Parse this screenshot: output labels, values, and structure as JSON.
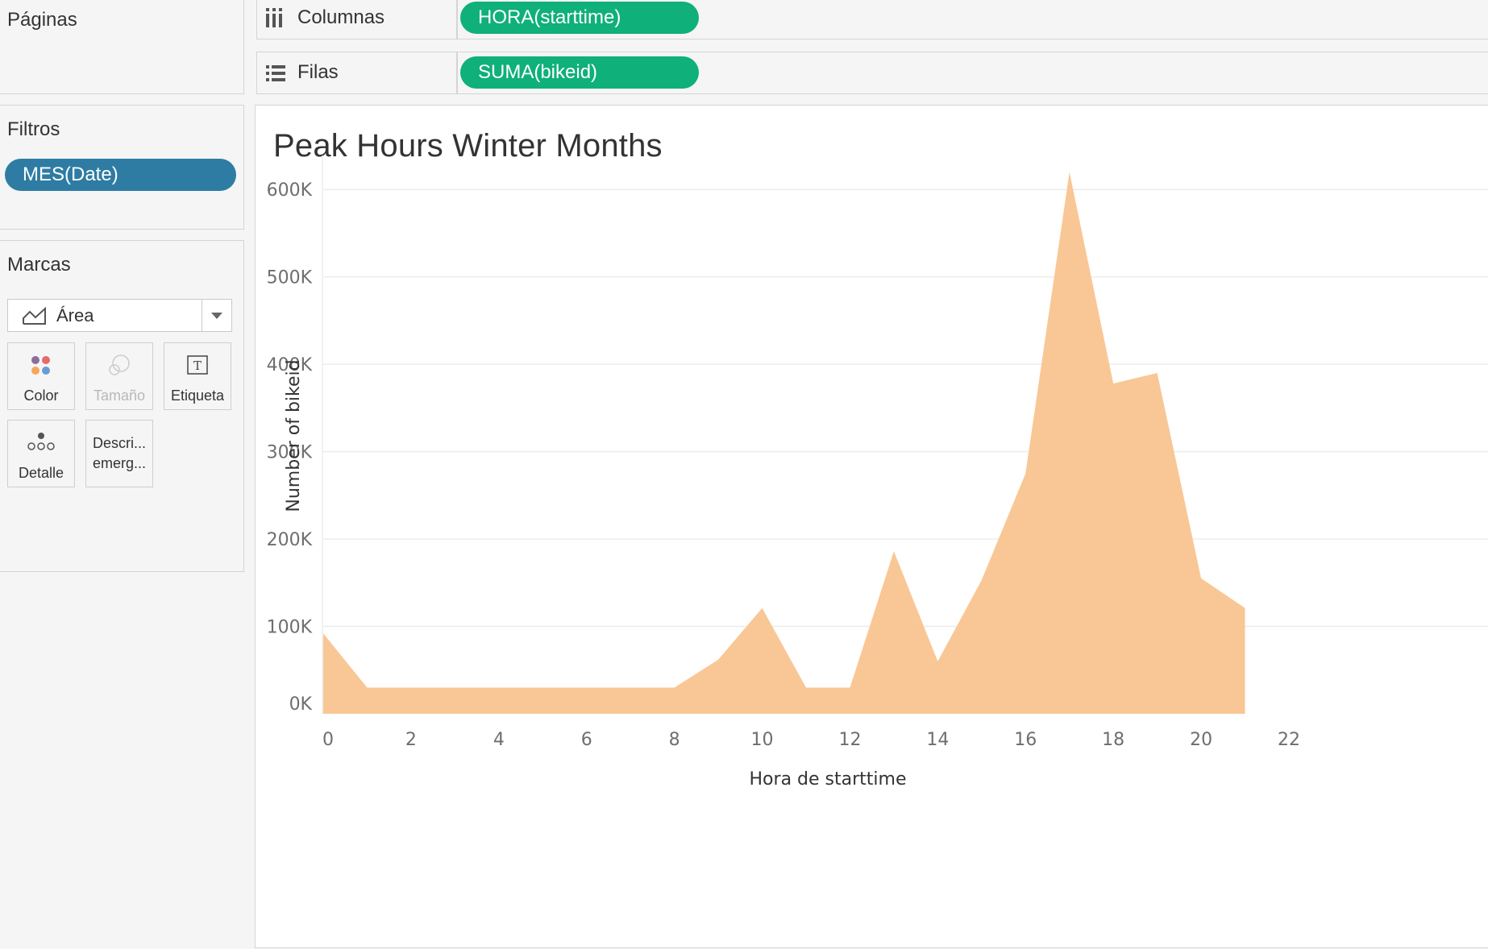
{
  "sidebar": {
    "pages_title": "Páginas",
    "filters_title": "Filtros",
    "filter_pill": "MES(Date)",
    "marks_title": "Marcas",
    "mark_type": "Área",
    "mark_cards": {
      "color": "Color",
      "size": "Tamaño",
      "label": "Etiqueta",
      "detail": "Detalle",
      "tooltip_line1": "Descri...",
      "tooltip_line2": "emerg..."
    }
  },
  "shelves": {
    "columns_label": "Columnas",
    "columns_pill": "HORA(starttime)",
    "rows_label": "Filas",
    "rows_pill": "SUMA(bikeid)"
  },
  "colors": {
    "area_fill": "#f9c795",
    "filter_pill": "#2e7ca3",
    "shelf_pill": "#0fb07a"
  },
  "chart_data": {
    "type": "area",
    "title": "Peak Hours Winter Months",
    "xlabel": "Hora de starttime",
    "ylabel": "Number of bikeid",
    "x": [
      0,
      1,
      2,
      3,
      4,
      5,
      6,
      7,
      8,
      9,
      10,
      11,
      12,
      13,
      14,
      15,
      16,
      17,
      18,
      19,
      20,
      21
    ],
    "y": [
      92000,
      30000,
      30000,
      30000,
      30000,
      30000,
      30000,
      30000,
      30000,
      62000,
      121000,
      30000,
      30000,
      186000,
      60000,
      153000,
      275000,
      620000,
      378000,
      390000,
      155000,
      121000
    ],
    "xlim": [
      0,
      22
    ],
    "ylim": [
      0,
      650000
    ],
    "x_ticks": [
      0,
      2,
      4,
      6,
      8,
      10,
      12,
      14,
      16,
      18,
      20,
      22
    ],
    "x_tick_labels": [
      "0",
      "2",
      "4",
      "6",
      "8",
      "10",
      "12",
      "14",
      "16",
      "18",
      "20",
      "22"
    ],
    "y_ticks": [
      0,
      100000,
      200000,
      300000,
      400000,
      500000,
      600000
    ],
    "y_tick_labels": [
      "0K",
      "100K",
      "200K",
      "300K",
      "400K",
      "500K",
      "600K"
    ],
    "grid": true,
    "legend": "none"
  }
}
